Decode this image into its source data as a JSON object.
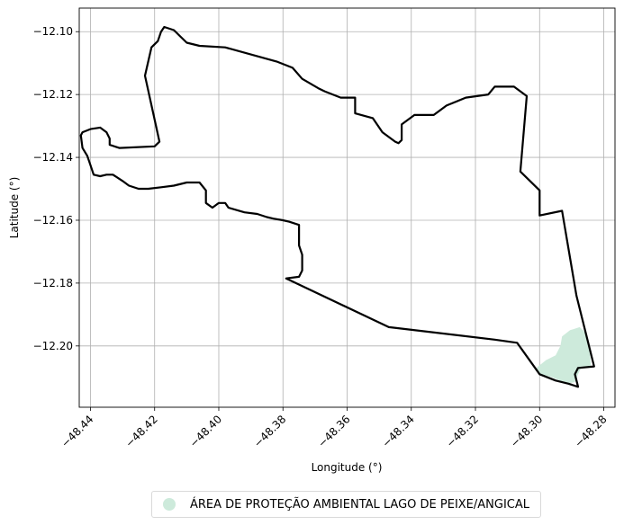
{
  "chart_data": {
    "type": "map",
    "title": "",
    "xlabel": "Longitude (°)",
    "ylabel": "Latitude (°)",
    "xlim": [
      -48.4435,
      -48.2765
    ],
    "ylim": [
      -12.2195,
      -12.0925
    ],
    "x_ticks": [
      -48.44,
      -48.42,
      -48.4,
      -48.38,
      -48.36,
      -48.34,
      -48.32,
      -48.3,
      -48.28
    ],
    "x_tick_labels": [
      "−48.44",
      "−48.42",
      "−48.40",
      "−48.38",
      "−48.36",
      "−48.34",
      "−48.32",
      "−48.30",
      "−48.28"
    ],
    "y_ticks": [
      -12.1,
      -12.12,
      -12.14,
      -12.16,
      -12.18,
      -12.2
    ],
    "y_tick_labels": [
      "−12.10",
      "−12.12",
      "−12.14",
      "−12.16",
      "−12.18",
      "−12.20"
    ],
    "grid": true,
    "legend_placement": "bottom-center",
    "boundary": {
      "color": "#000000",
      "coordinates": [
        [
          -48.417,
          -12.0985
        ],
        [
          -48.414,
          -12.0995
        ],
        [
          -48.412,
          -12.1015
        ],
        [
          -48.41,
          -12.1035
        ],
        [
          -48.406,
          -12.1045
        ],
        [
          -48.398,
          -12.105
        ],
        [
          -48.382,
          -12.1095
        ],
        [
          -48.377,
          -12.1115
        ],
        [
          -48.374,
          -12.115
        ],
        [
          -48.369,
          -12.118
        ],
        [
          -48.367,
          -12.119
        ],
        [
          -48.362,
          -12.121
        ],
        [
          -48.3575,
          -12.121
        ],
        [
          -48.3575,
          -12.126
        ],
        [
          -48.352,
          -12.1275
        ],
        [
          -48.349,
          -12.132
        ],
        [
          -48.345,
          -12.135
        ],
        [
          -48.344,
          -12.1355
        ],
        [
          -48.343,
          -12.1345
        ],
        [
          -48.343,
          -12.1295
        ],
        [
          -48.339,
          -12.1265
        ],
        [
          -48.333,
          -12.1265
        ],
        [
          -48.329,
          -12.1235
        ],
        [
          -48.323,
          -12.121
        ],
        [
          -48.316,
          -12.12
        ],
        [
          -48.314,
          -12.1175
        ],
        [
          -48.308,
          -12.1175
        ],
        [
          -48.304,
          -12.1205
        ],
        [
          -48.306,
          -12.1445
        ],
        [
          -48.3,
          -12.1505
        ],
        [
          -48.3,
          -12.1585
        ],
        [
          -48.293,
          -12.157
        ],
        [
          -48.2885,
          -12.184
        ],
        [
          -48.283,
          -12.2065
        ],
        [
          -48.288,
          -12.207
        ],
        [
          -48.289,
          -12.209
        ],
        [
          -48.288,
          -12.213
        ],
        [
          -48.291,
          -12.212
        ],
        [
          -48.295,
          -12.211
        ],
        [
          -48.3,
          -12.209
        ],
        [
          -48.307,
          -12.199
        ],
        [
          -48.314,
          -12.198
        ],
        [
          -48.347,
          -12.194
        ],
        [
          -48.379,
          -12.1785
        ],
        [
          -48.375,
          -12.178
        ],
        [
          -48.374,
          -12.176
        ],
        [
          -48.374,
          -12.171
        ],
        [
          -48.375,
          -12.168
        ],
        [
          -48.375,
          -12.1615
        ],
        [
          -48.378,
          -12.1605
        ],
        [
          -48.38,
          -12.16
        ],
        [
          -48.383,
          -12.1595
        ],
        [
          -48.385,
          -12.159
        ],
        [
          -48.388,
          -12.158
        ],
        [
          -48.392,
          -12.1575
        ],
        [
          -48.397,
          -12.156
        ],
        [
          -48.398,
          -12.1545
        ],
        [
          -48.4,
          -12.1545
        ],
        [
          -48.402,
          -12.156
        ],
        [
          -48.404,
          -12.1545
        ],
        [
          -48.404,
          -12.1505
        ],
        [
          -48.406,
          -12.148
        ],
        [
          -48.41,
          -12.148
        ],
        [
          -48.414,
          -12.149
        ],
        [
          -48.418,
          -12.1495
        ],
        [
          -48.422,
          -12.15
        ],
        [
          -48.425,
          -12.15
        ],
        [
          -48.428,
          -12.149
        ],
        [
          -48.43,
          -12.1475
        ],
        [
          -48.433,
          -12.1455
        ],
        [
          -48.435,
          -12.1455
        ],
        [
          -48.437,
          -12.146
        ],
        [
          -48.439,
          -12.1455
        ],
        [
          -48.44,
          -12.1425
        ],
        [
          -48.441,
          -12.1395
        ],
        [
          -48.4425,
          -12.137
        ],
        [
          -48.443,
          -12.133
        ],
        [
          -48.4425,
          -12.132
        ],
        [
          -48.44,
          -12.131
        ],
        [
          -48.437,
          -12.1305
        ],
        [
          -48.435,
          -12.132
        ],
        [
          -48.434,
          -12.134
        ],
        [
          -48.434,
          -12.136
        ],
        [
          -48.431,
          -12.137
        ],
        [
          -48.42,
          -12.1365
        ],
        [
          -48.4185,
          -12.135
        ],
        [
          -48.423,
          -12.114
        ],
        [
          -48.421,
          -12.105
        ],
        [
          -48.419,
          -12.103
        ],
        [
          -48.418,
          -12.1
        ],
        [
          -48.417,
          -12.0985
        ]
      ]
    },
    "protected_area": {
      "name": "ÁREA DE PROTEÇÃO AMBIENTAL LAGO DE PEIXE/ANGICAL",
      "color": "#cdeadb",
      "coordinates": [
        [
          -48.2875,
          -12.194
        ],
        [
          -48.2905,
          -12.195
        ],
        [
          -48.293,
          -12.197
        ],
        [
          -48.2935,
          -12.2
        ],
        [
          -48.295,
          -12.203
        ],
        [
          -48.298,
          -12.2045
        ],
        [
          -48.301,
          -12.207
        ],
        [
          -48.3,
          -12.209
        ],
        [
          -48.296,
          -12.21
        ],
        [
          -48.2915,
          -12.212
        ],
        [
          -48.289,
          -12.2115
        ],
        [
          -48.288,
          -12.209
        ],
        [
          -48.287,
          -12.2068
        ],
        [
          -48.284,
          -12.2066
        ],
        [
          -48.2845,
          -12.2
        ],
        [
          -48.286,
          -12.1955
        ],
        [
          -48.2875,
          -12.194
        ]
      ]
    }
  }
}
